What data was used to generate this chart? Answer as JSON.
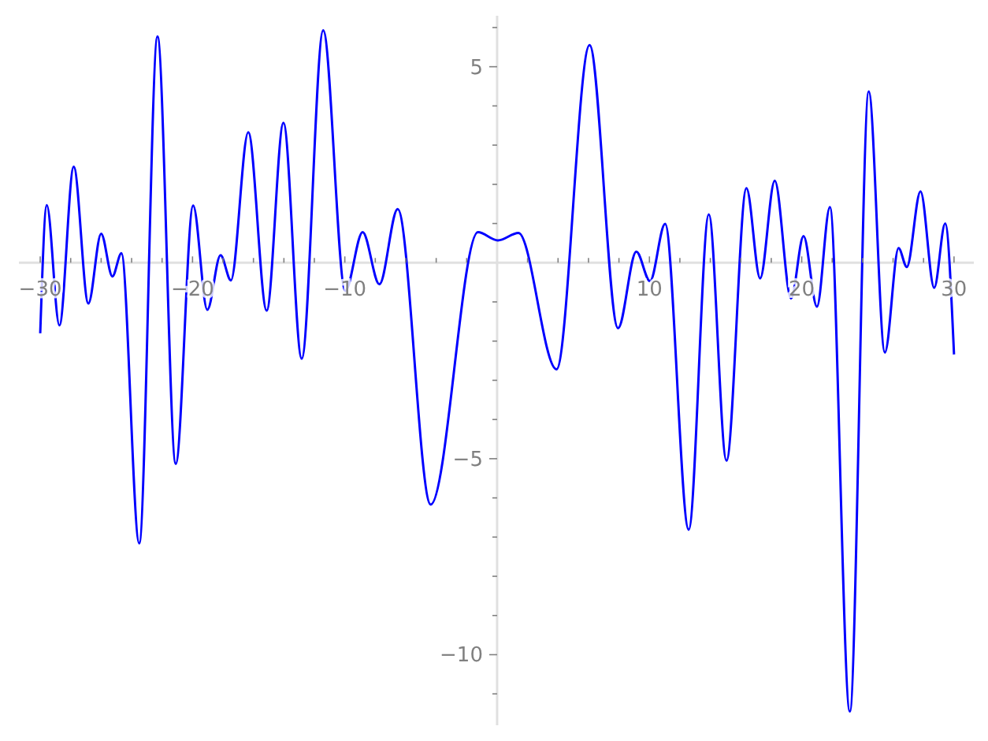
{
  "chart_data": {
    "type": "line",
    "x": [
      -30.0,
      -29.57,
      -28.74,
      -27.8,
      -26.84,
      -26.0,
      -25.26,
      -24.67,
      -23.5,
      -22.3,
      -21.1,
      -19.96,
      -19.03,
      -18.16,
      -17.48,
      -16.34,
      -15.13,
      -14.03,
      -12.83,
      -11.42,
      -9.97,
      -8.83,
      -7.73,
      -6.53,
      -4.36,
      -1.26,
      0.05,
      1.4,
      3.9,
      6.07,
      7.94,
      9.14,
      10.04,
      11.03,
      12.58,
      13.9,
      15.06,
      16.37,
      17.27,
      18.23,
      19.3,
      20.12,
      21.0,
      21.85,
      23.16,
      24.4,
      25.46,
      26.36,
      26.9,
      27.8,
      28.7,
      29.42,
      30.0
    ],
    "series": [
      {
        "color": "#0000ff",
        "values": [
          -1.8,
          1.47,
          -1.6,
          2.45,
          -1.04,
          0.74,
          -0.35,
          0.24,
          -7.16,
          5.77,
          -5.13,
          1.46,
          -1.2,
          0.19,
          -0.45,
          3.33,
          -1.22,
          3.57,
          -2.45,
          5.93,
          -0.72,
          0.78,
          -0.55,
          1.37,
          -6.17,
          0.78,
          0.57,
          0.76,
          -2.72,
          5.55,
          -1.67,
          0.28,
          -0.47,
          0.99,
          -6.81,
          1.23,
          -5.05,
          1.9,
          -0.4,
          2.09,
          -0.91,
          0.68,
          -1.12,
          1.42,
          -11.45,
          4.37,
          -2.29,
          0.37,
          -0.11,
          1.82,
          -0.64,
          1.0,
          -2.34
        ]
      }
    ],
    "xlim": [
      -31.4,
      31.3
    ],
    "ylim": [
      -11.8,
      6.3
    ],
    "xticks": [
      {
        "value": -30,
        "label": "−30"
      },
      {
        "value": -28,
        "label": null
      },
      {
        "value": -26,
        "label": null
      },
      {
        "value": -24,
        "label": null
      },
      {
        "value": -22,
        "label": null
      },
      {
        "value": -20,
        "label": "−20"
      },
      {
        "value": -18,
        "label": null
      },
      {
        "value": -16,
        "label": null
      },
      {
        "value": -14,
        "label": null
      },
      {
        "value": -12,
        "label": null
      },
      {
        "value": -10,
        "label": "−10"
      },
      {
        "value": -8,
        "label": null
      },
      {
        "value": -6,
        "label": null
      },
      {
        "value": -4,
        "label": null
      },
      {
        "value": -2,
        "label": null
      },
      {
        "value": 2,
        "label": null
      },
      {
        "value": 4,
        "label": null
      },
      {
        "value": 6,
        "label": null
      },
      {
        "value": 8,
        "label": null
      },
      {
        "value": 10,
        "label": "10"
      },
      {
        "value": 12,
        "label": null
      },
      {
        "value": 14,
        "label": null
      },
      {
        "value": 16,
        "label": null
      },
      {
        "value": 18,
        "label": null
      },
      {
        "value": 20,
        "label": "20"
      },
      {
        "value": 22,
        "label": null
      },
      {
        "value": 24,
        "label": null
      },
      {
        "value": 26,
        "label": null
      },
      {
        "value": 28,
        "label": null
      },
      {
        "value": 30,
        "label": "30"
      }
    ],
    "yticks": [
      {
        "value": -11,
        "label": null
      },
      {
        "value": -10,
        "label": "−10"
      },
      {
        "value": -9,
        "label": null
      },
      {
        "value": -8,
        "label": null
      },
      {
        "value": -7,
        "label": null
      },
      {
        "value": -6,
        "label": null
      },
      {
        "value": -5,
        "label": "−5"
      },
      {
        "value": -4,
        "label": null
      },
      {
        "value": -3,
        "label": null
      },
      {
        "value": -2,
        "label": null
      },
      {
        "value": -1,
        "label": null
      },
      {
        "value": 1,
        "label": null
      },
      {
        "value": 2,
        "label": null
      },
      {
        "value": 3,
        "label": null
      },
      {
        "value": 4,
        "label": null
      },
      {
        "value": 5,
        "label": "5"
      },
      {
        "value": 6,
        "label": null
      }
    ],
    "grid": false,
    "line_style": "solid",
    "marker": "none"
  }
}
